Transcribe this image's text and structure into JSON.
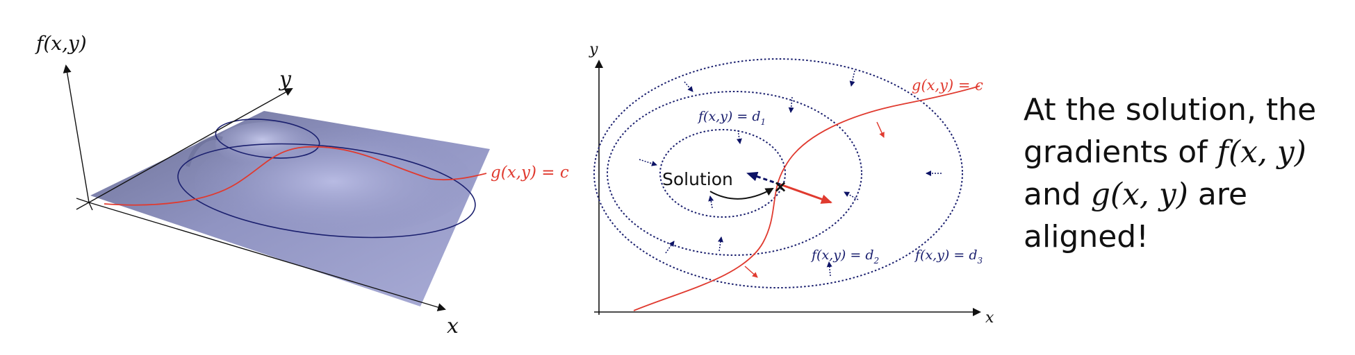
{
  "left_diagram": {
    "axis_f": "f(x,y)",
    "axis_y": "y",
    "axis_x": "x",
    "constraint": "g(x,y) = c"
  },
  "right_diagram": {
    "axis_y": "y",
    "axis_x": "x",
    "constraint": "g(x,y) = c",
    "contour_1": "f(x,y) = d",
    "contour_1_sub": "1",
    "contour_2": "f(x,y) = d",
    "contour_2_sub": "2",
    "contour_3": "f(x,y) = d",
    "contour_3_sub": "3",
    "solution": "Solution",
    "solution_mark": "×"
  },
  "caption": {
    "line1": "At the solution, the",
    "line2_a": "gradients of ",
    "line2_m": "f(x, y)",
    "line3_a": "and ",
    "line3_m": "g(x, y)",
    "line3_b": " are",
    "line4": "aligned!"
  },
  "colors": {
    "surface": "#9b9fcb",
    "contour": "#1a1f6e",
    "constraint": "#e03a2f",
    "gradient_f": "#0d1366",
    "gradient_g": "#e03a2f"
  }
}
